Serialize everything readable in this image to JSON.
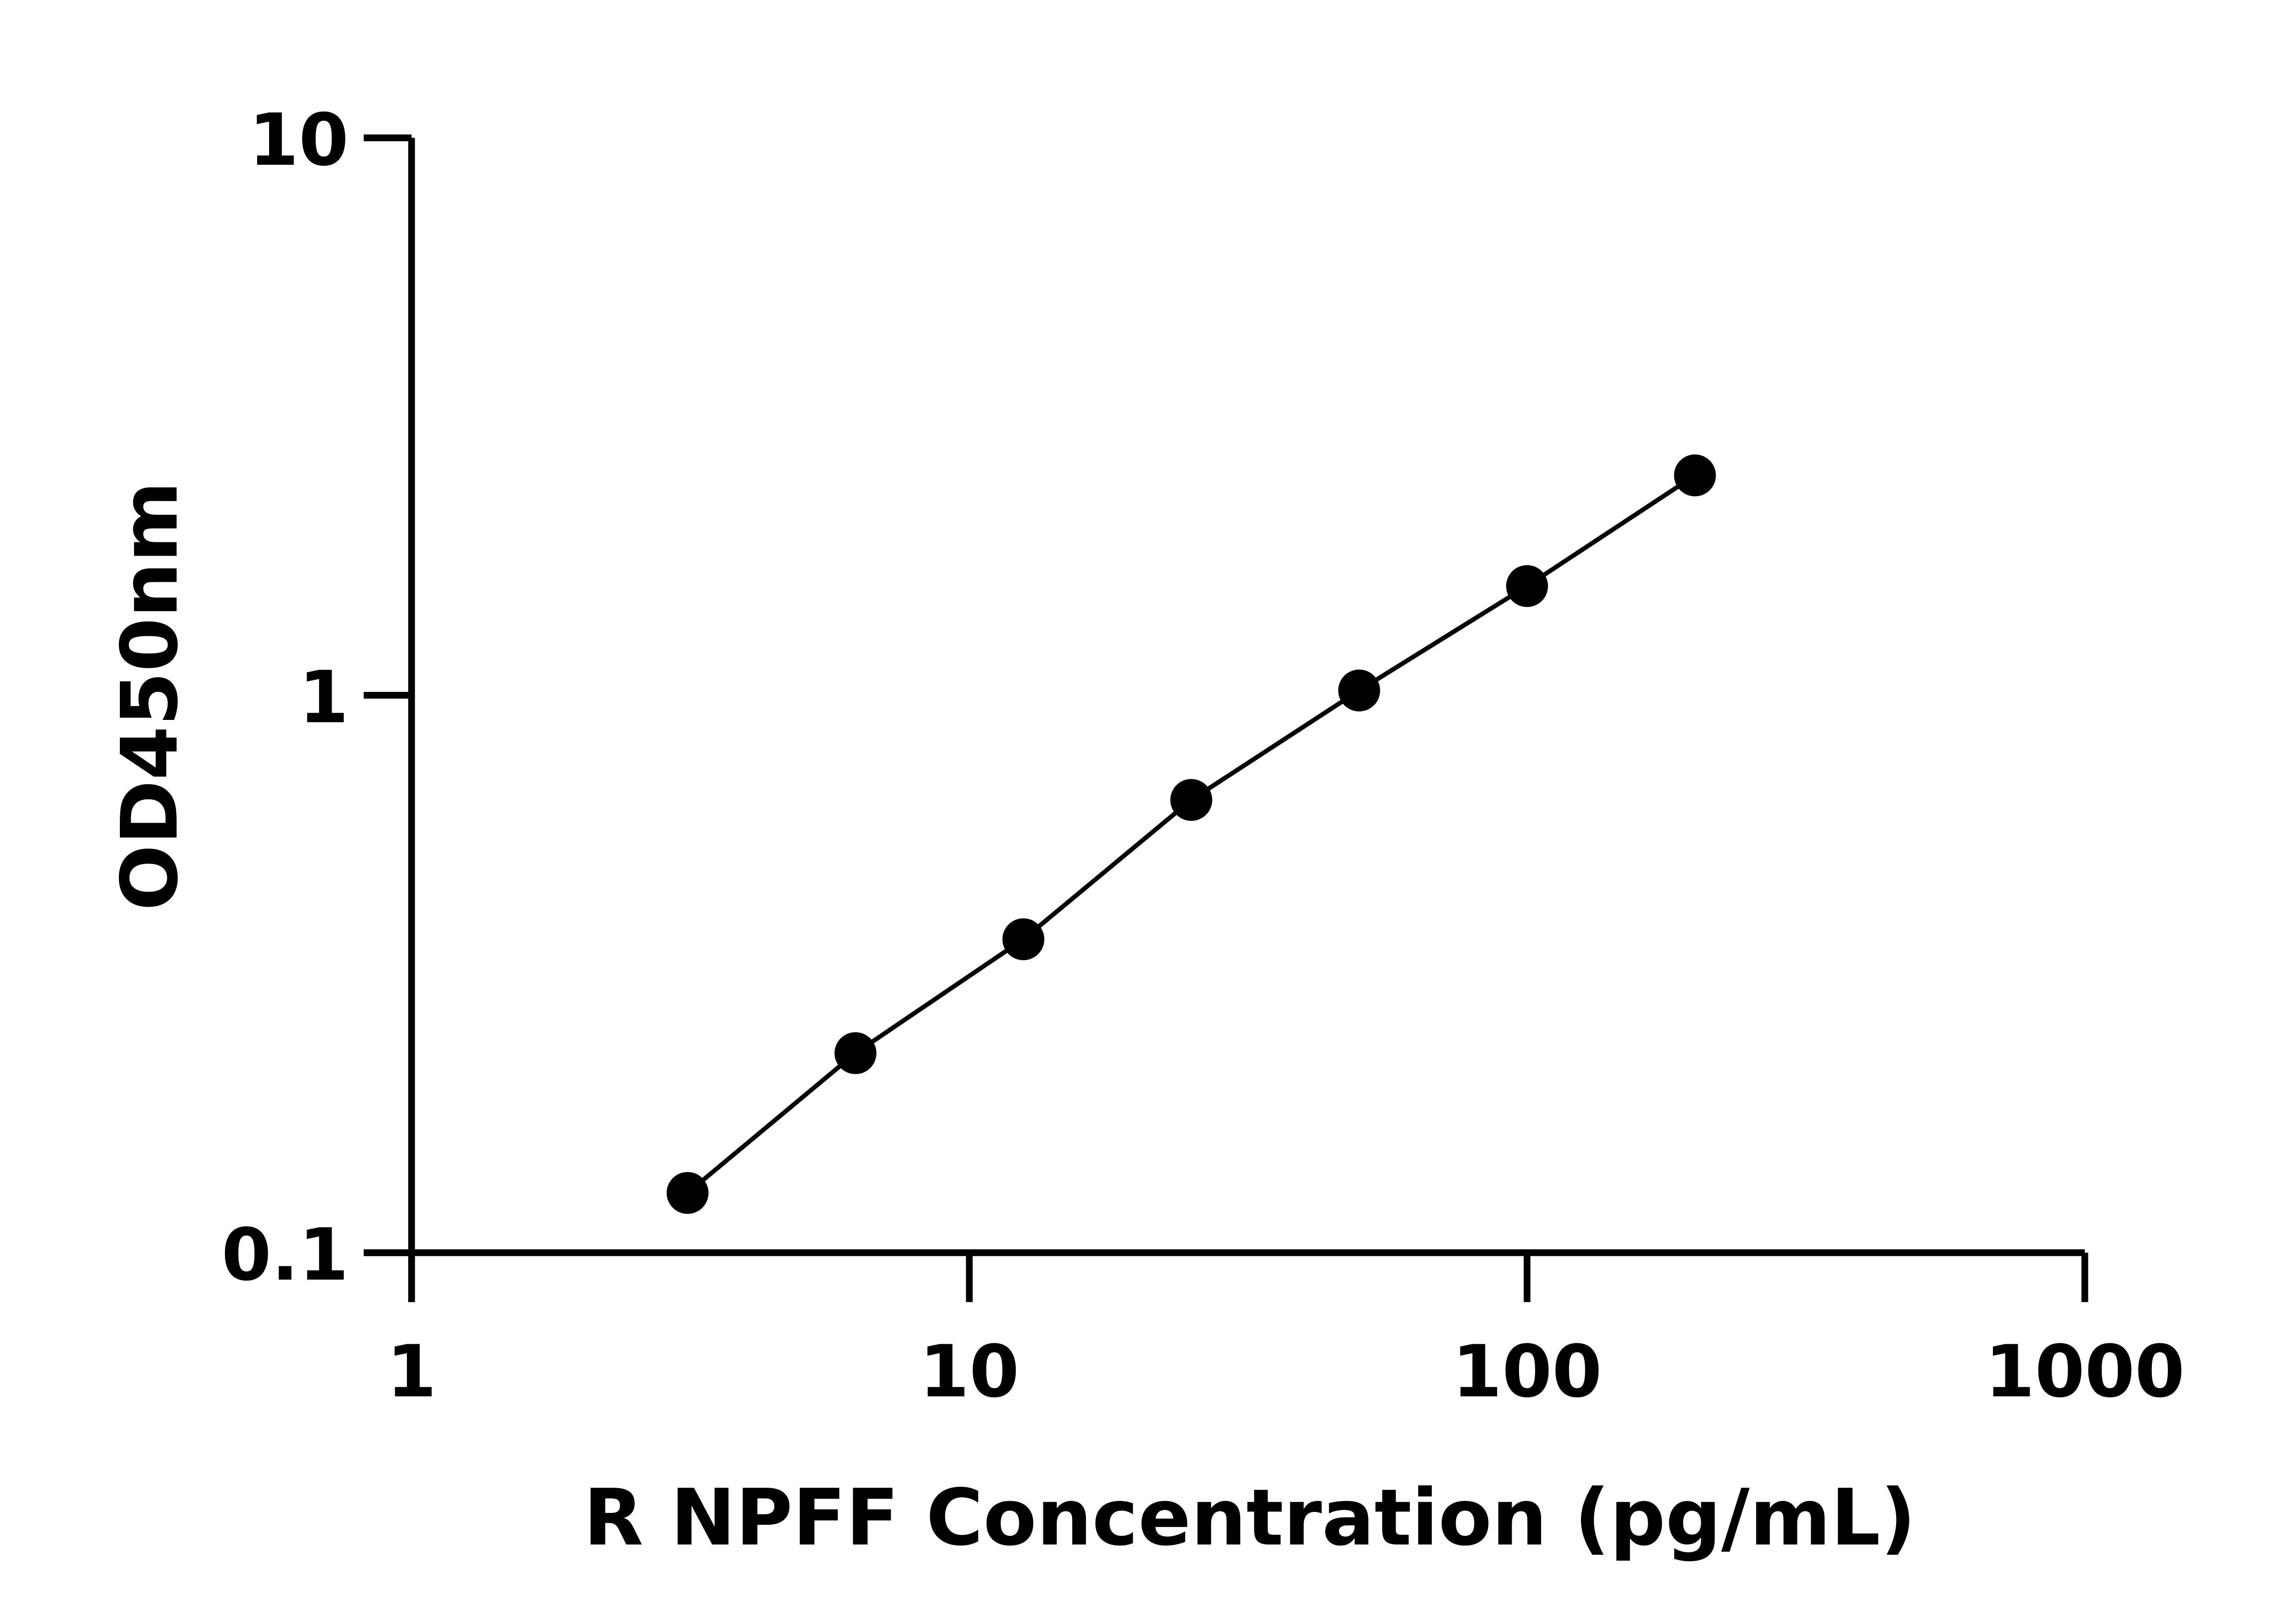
{
  "chart_data": {
    "type": "line",
    "title": "",
    "xlabel": "R NPFF Concentration (pg/mL)",
    "ylabel": "OD450nm",
    "xscale": "log",
    "yscale": "log",
    "xlim": [
      1,
      1000
    ],
    "ylim": [
      0.1,
      10
    ],
    "xticks": [
      "1",
      "10",
      "100",
      "1000"
    ],
    "yticks": [
      "0.1",
      "1",
      "10"
    ],
    "grid": false,
    "legend": "none",
    "series": [
      {
        "x": [
          3.125,
          6.25,
          12.5,
          25,
          50,
          100,
          200
        ],
        "y": [
          0.128,
          0.228,
          0.365,
          0.649,
          1.02,
          1.57,
          2.48
        ],
        "marker": "circle",
        "color": "#000000"
      }
    ]
  }
}
